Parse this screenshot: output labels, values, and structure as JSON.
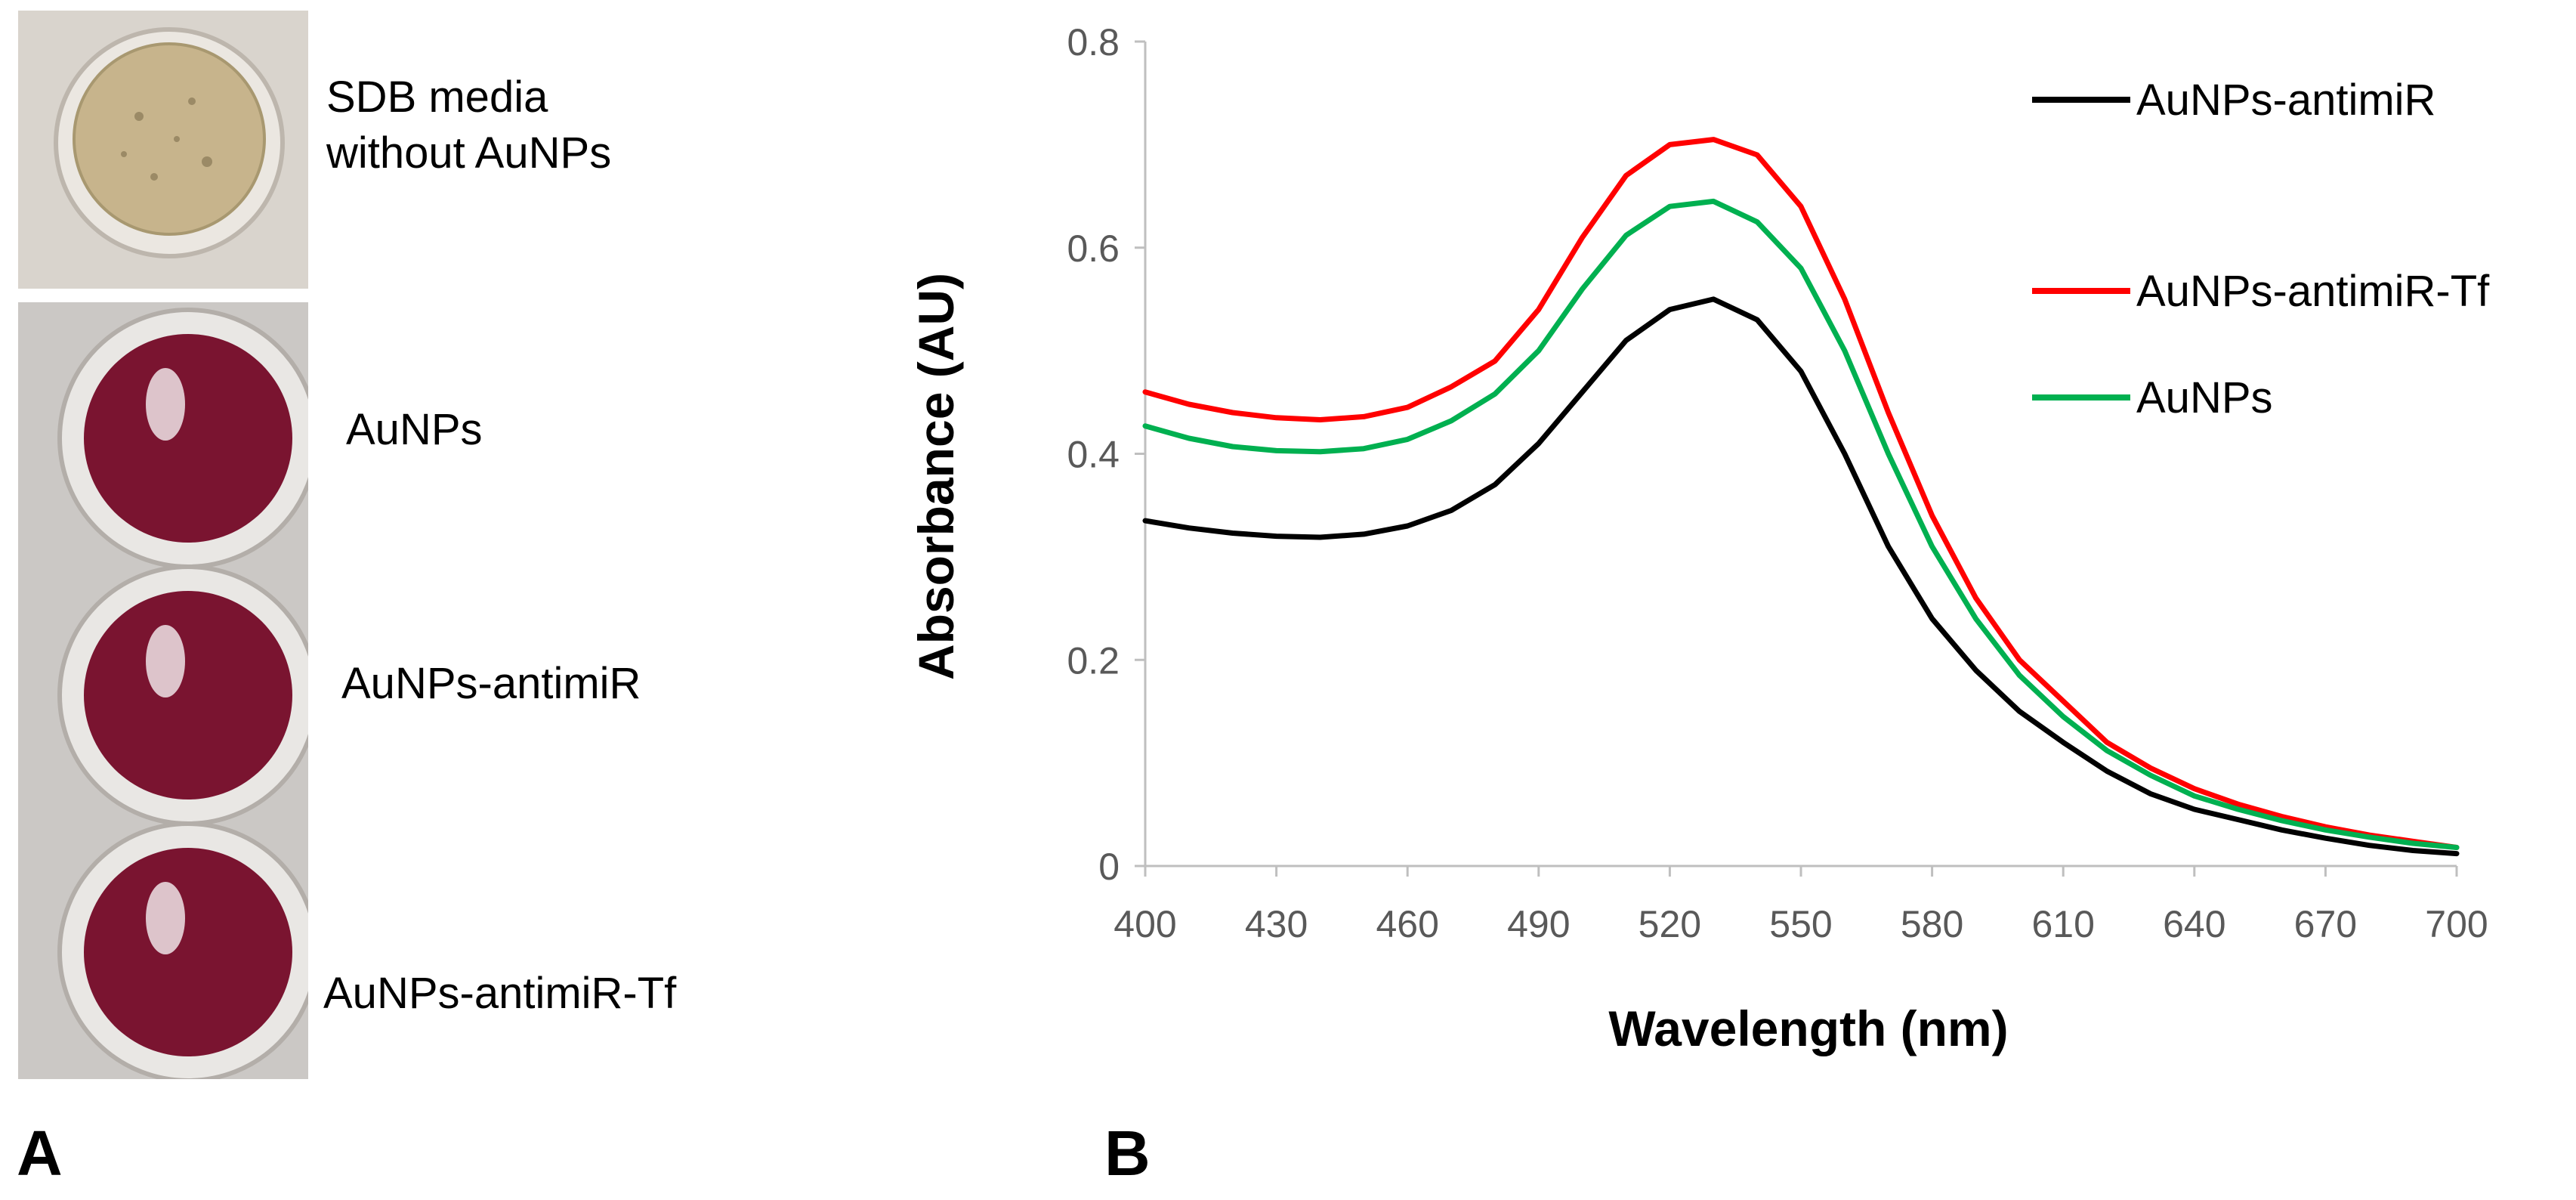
{
  "panel_a": {
    "letter": "A",
    "labels": [
      {
        "line1": "SDB media",
        "line2": "without AuNPs"
      },
      {
        "line1": "AuNPs"
      },
      {
        "line1": "AuNPs-antimiR"
      },
      {
        "line1": "AuNPs-antimiR-Tf"
      }
    ],
    "colors": {
      "media": "#c9b891",
      "nanoparticle_well": "#7a1430"
    }
  },
  "panel_b": {
    "letter": "B"
  },
  "chart_data": {
    "type": "line",
    "xlabel": "Wavelength (nm)",
    "ylabel": "Absorbance (AU)",
    "xlim": [
      400,
      700
    ],
    "ylim": [
      0,
      0.8
    ],
    "x_ticks": [
      "400",
      "430",
      "460",
      "490",
      "520",
      "550",
      "580",
      "610",
      "640",
      "670",
      "700"
    ],
    "y_ticks": [
      "0",
      "0.2",
      "0.4",
      "0.6",
      "0.8"
    ],
    "grid": false,
    "legend_position": "top-right",
    "x": [
      400,
      410,
      420,
      430,
      440,
      450,
      460,
      470,
      480,
      490,
      500,
      510,
      520,
      530,
      540,
      550,
      560,
      570,
      580,
      590,
      600,
      610,
      620,
      630,
      640,
      650,
      660,
      670,
      680,
      690,
      700
    ],
    "series": [
      {
        "name": "AuNPs-antimiR",
        "color": "#000000",
        "values": [
          0.335,
          0.328,
          0.323,
          0.32,
          0.319,
          0.322,
          0.33,
          0.345,
          0.37,
          0.41,
          0.46,
          0.51,
          0.54,
          0.55,
          0.53,
          0.48,
          0.4,
          0.31,
          0.24,
          0.19,
          0.15,
          0.12,
          0.092,
          0.07,
          0.055,
          0.045,
          0.035,
          0.027,
          0.02,
          0.015,
          0.012
        ]
      },
      {
        "name": "AuNPs-antimiR-Tf",
        "color": "#ff0000",
        "values": [
          0.46,
          0.448,
          0.44,
          0.435,
          0.433,
          0.436,
          0.445,
          0.465,
          0.49,
          0.54,
          0.61,
          0.67,
          0.7,
          0.705,
          0.69,
          0.64,
          0.55,
          0.44,
          0.34,
          0.26,
          0.2,
          0.16,
          0.12,
          0.095,
          0.075,
          0.06,
          0.048,
          0.038,
          0.03,
          0.024,
          0.018
        ]
      },
      {
        "name": "AuNPs",
        "color": "#00b050",
        "values": [
          0.427,
          0.415,
          0.407,
          0.403,
          0.402,
          0.405,
          0.414,
          0.432,
          0.458,
          0.5,
          0.56,
          0.612,
          0.64,
          0.645,
          0.625,
          0.58,
          0.5,
          0.4,
          0.31,
          0.24,
          0.185,
          0.145,
          0.112,
          0.088,
          0.068,
          0.055,
          0.044,
          0.035,
          0.028,
          0.022,
          0.018
        ]
      }
    ]
  }
}
